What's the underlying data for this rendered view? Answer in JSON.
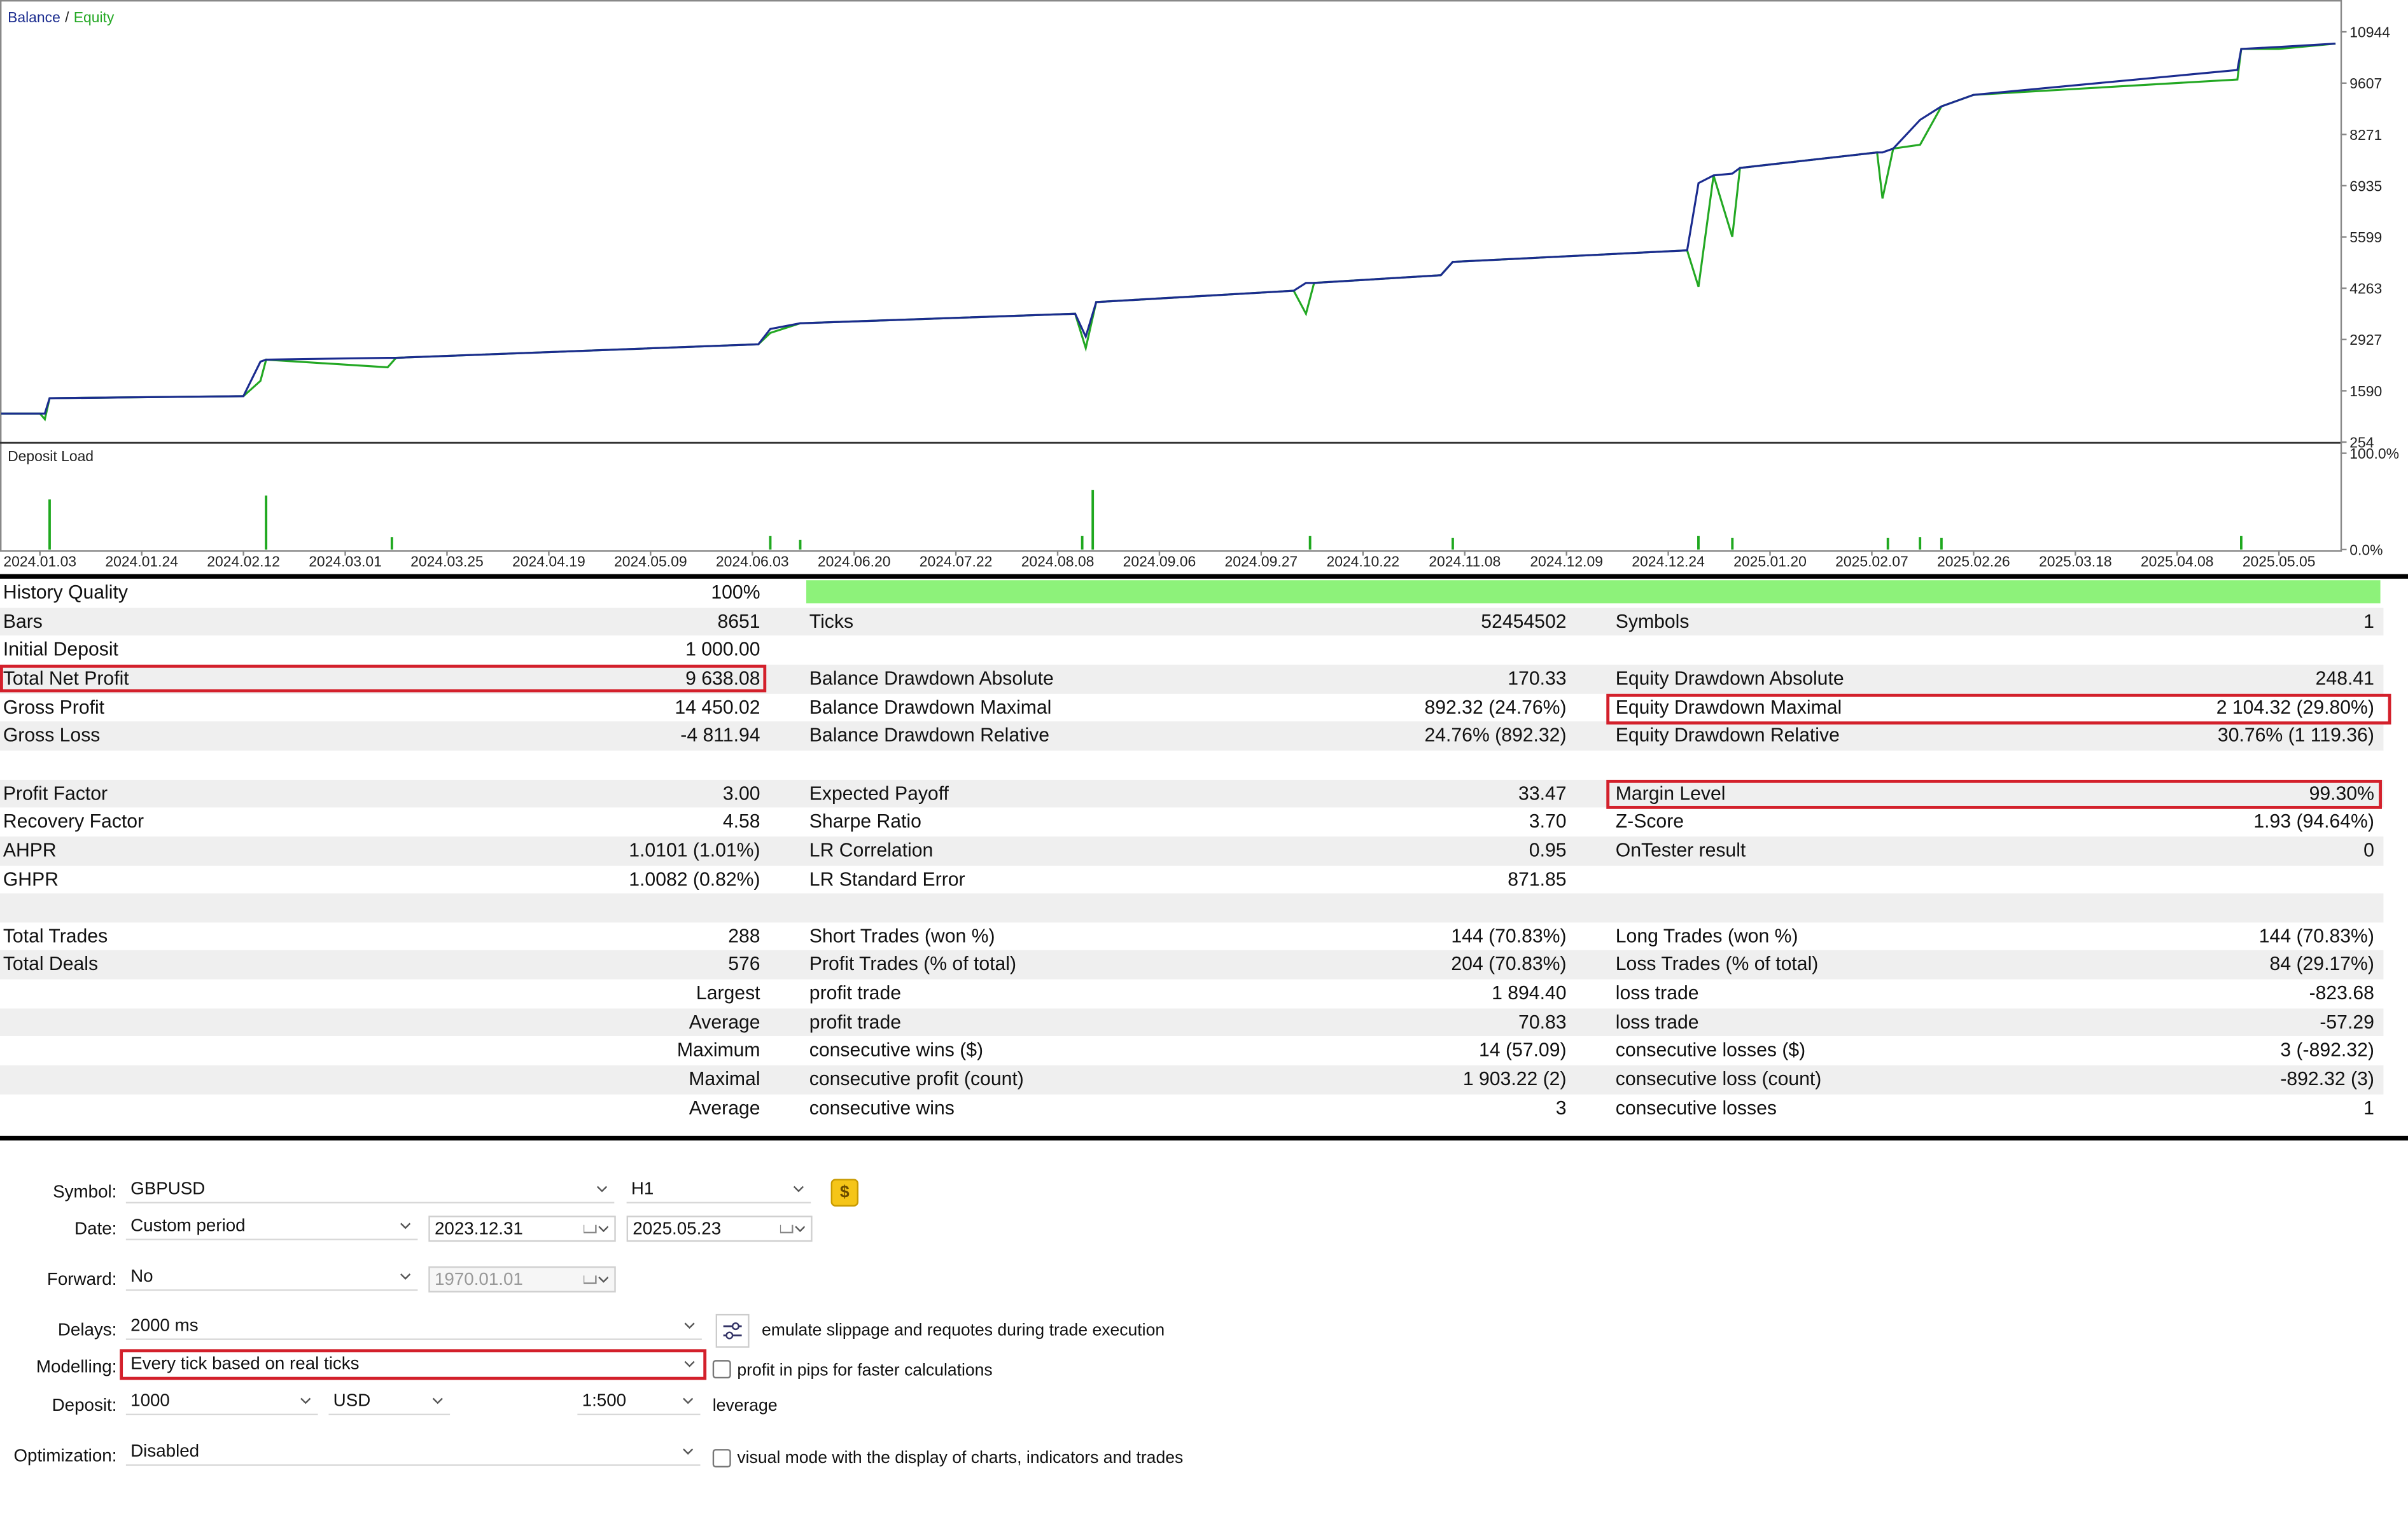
{
  "chart_data": [
    {
      "type": "line",
      "legend_separator": "/",
      "x": [
        "2023.12.26",
        "2024.01.03",
        "2024.01.04",
        "2024.01.05",
        "2024.02.12",
        "2024.02.15",
        "2024.02.16",
        "2024.03.11",
        "2024.03.13",
        "2024.06.04",
        "2024.06.06",
        "2024.06.11",
        "2024.08.13",
        "2024.08.16",
        "2024.08.19",
        "2024.10.05",
        "2024.10.08",
        "2024.10.10",
        "2024.11.04",
        "2024.11.06",
        "2024.12.29",
        "2025.01.01",
        "2025.01.05",
        "2025.01.10",
        "2025.01.12",
        "2025.02.08",
        "2025.02.09",
        "2025.02.11",
        "2025.02.16",
        "2025.02.20",
        "2025.02.26",
        "2025.04.24",
        "2025.04.25",
        "2025.05.05",
        "2025.05.20"
      ],
      "series": [
        {
          "name": "Balance",
          "color": "#1b2c8f",
          "values": [
            1000,
            1000,
            1000,
            1400,
            1450,
            2350,
            2400,
            2450,
            2450,
            2800,
            3200,
            3350,
            3600,
            3000,
            3900,
            4200,
            4400,
            4400,
            4600,
            4950,
            5250,
            7000,
            7200,
            7250,
            7400,
            7800,
            7800,
            7900,
            8650,
            9000,
            9300,
            9950,
            10500,
            10550,
            10638
          ]
        },
        {
          "name": "Equity",
          "color": "#23a823",
          "values": [
            1000,
            1000,
            850,
            1400,
            1450,
            1850,
            2400,
            2200,
            2450,
            2800,
            3100,
            3350,
            3600,
            2700,
            3900,
            4200,
            3600,
            4400,
            4600,
            4950,
            5250,
            4300,
            7200,
            5600,
            7400,
            7800,
            6600,
            7900,
            8000,
            9000,
            9300,
            9700,
            10500,
            10500,
            10638
          ]
        }
      ],
      "ylim": [
        254,
        11694
      ],
      "yticks": [
        254,
        1590,
        2927,
        4263,
        5599,
        6935,
        8271,
        9607,
        10944
      ]
    },
    {
      "type": "bar",
      "title": "Deposit Load",
      "color": "#1fa81f",
      "x": [
        "2024.01.05",
        "2024.02.16",
        "2024.03.12",
        "2024.06.06",
        "2024.06.11",
        "2024.08.15",
        "2024.08.18",
        "2024.10.09",
        "2024.11.06",
        "2025.01.01",
        "2025.01.10",
        "2025.02.10",
        "2025.02.16",
        "2025.02.20",
        "2025.04.25"
      ],
      "values": [
        52,
        56,
        13,
        14,
        10,
        14,
        62,
        14,
        12,
        14,
        12,
        12,
        13,
        12,
        14
      ],
      "ylim": [
        0,
        110
      ],
      "yticks": [
        {
          "value": 0,
          "label": "0.0%"
        },
        {
          "value": 100,
          "label": "100.0%"
        }
      ],
      "xticks": [
        "2024.01.03",
        "2024.01.24",
        "2024.02.12",
        "2024.03.01",
        "2024.03.25",
        "2024.04.19",
        "2024.05.09",
        "2024.06.03",
        "2024.06.20",
        "2024.07.22",
        "2024.08.08",
        "2024.09.06",
        "2024.09.27",
        "2024.10.22",
        "2024.11.08",
        "2024.12.09",
        "2024.12.24",
        "2025.01.20",
        "2025.02.07",
        "2025.02.26",
        "2025.03.18",
        "2025.04.08",
        "2025.05.05"
      ]
    }
  ],
  "stats": {
    "rows": [
      [
        "History Quality",
        "100%",
        null,
        null,
        null,
        null
      ],
      [
        "Bars",
        "8651",
        "Ticks",
        "52454502",
        "Symbols",
        "1"
      ],
      [
        "Initial Deposit",
        "1 000.00",
        null,
        null,
        null,
        null
      ],
      [
        "Total Net Profit",
        "9 638.08",
        "Balance Drawdown Absolute",
        "170.33",
        "Equity Drawdown Absolute",
        "248.41"
      ],
      [
        "Gross Profit",
        "14 450.02",
        "Balance Drawdown Maximal",
        "892.32 (24.76%)",
        "Equity Drawdown Maximal",
        "2 104.32 (29.80%)"
      ],
      [
        "Gross Loss",
        "-4 811.94",
        "Balance Drawdown Relative",
        "24.76% (892.32)",
        "Equity Drawdown Relative",
        "30.76% (1 119.36)"
      ],
      [],
      [
        "Profit Factor",
        "3.00",
        "Expected Payoff",
        "33.47",
        "Margin Level",
        "99.30%"
      ],
      [
        "Recovery Factor",
        "4.58",
        "Sharpe Ratio",
        "3.70",
        "Z-Score",
        "1.93 (94.64%)"
      ],
      [
        "AHPR",
        "1.0101 (1.01%)",
        "LR Correlation",
        "0.95",
        "OnTester result",
        "0"
      ],
      [
        "GHPR",
        "1.0082 (0.82%)",
        "LR Standard Error",
        "871.85",
        null,
        null
      ],
      [],
      [
        "Total Trades",
        "288",
        "Short Trades (won %)",
        "144 (70.83%)",
        "Long Trades (won %)",
        "144 (70.83%)"
      ],
      [
        "Total Deals",
        "576",
        "Profit Trades (% of total)",
        "204 (70.83%)",
        "Loss Trades (% of total)",
        "84 (29.17%)"
      ],
      [
        null,
        "Largest",
        "profit trade",
        "1 894.40",
        "loss trade",
        "-823.68"
      ],
      [
        null,
        "Average",
        "profit trade",
        "70.83",
        "loss trade",
        "-57.29"
      ],
      [
        null,
        "Maximum",
        "consecutive wins ($)",
        "14 (57.09)",
        "consecutive losses ($)",
        "3 (-892.32)"
      ],
      [
        null,
        "Maximal",
        "consecutive profit (count)",
        "1 903.22 (2)",
        "consecutive loss (count)",
        "-892.32 (3)"
      ],
      [
        null,
        "Average",
        "consecutive wins",
        "3",
        "consecutive losses",
        "1"
      ]
    ]
  },
  "settings": {
    "symbol": {
      "label": "Symbol:",
      "value": "GBPUSD",
      "timeframe": "H1",
      "icon": "$"
    },
    "date": {
      "label": "Date:",
      "mode": "Custom period",
      "from": "2023.12.31",
      "to": "2025.05.23"
    },
    "forward": {
      "label": "Forward:",
      "mode": "No",
      "date": "1970.01.01"
    },
    "delays": {
      "label": "Delays:",
      "value": "2000 ms",
      "option": "emulate slippage and requotes during trade execution"
    },
    "modelling": {
      "label": "Modelling:",
      "value": "Every tick based on real ticks",
      "option": "profit in pips for faster calculations"
    },
    "deposit": {
      "label": "Deposit:",
      "amount": "1000",
      "currency": "USD",
      "leverage": "1:500",
      "leverage_label": "leverage"
    },
    "optimization": {
      "label": "Optimization:",
      "value": "Disabled",
      "option": "visual mode with the display of charts, indicators and trades"
    }
  }
}
